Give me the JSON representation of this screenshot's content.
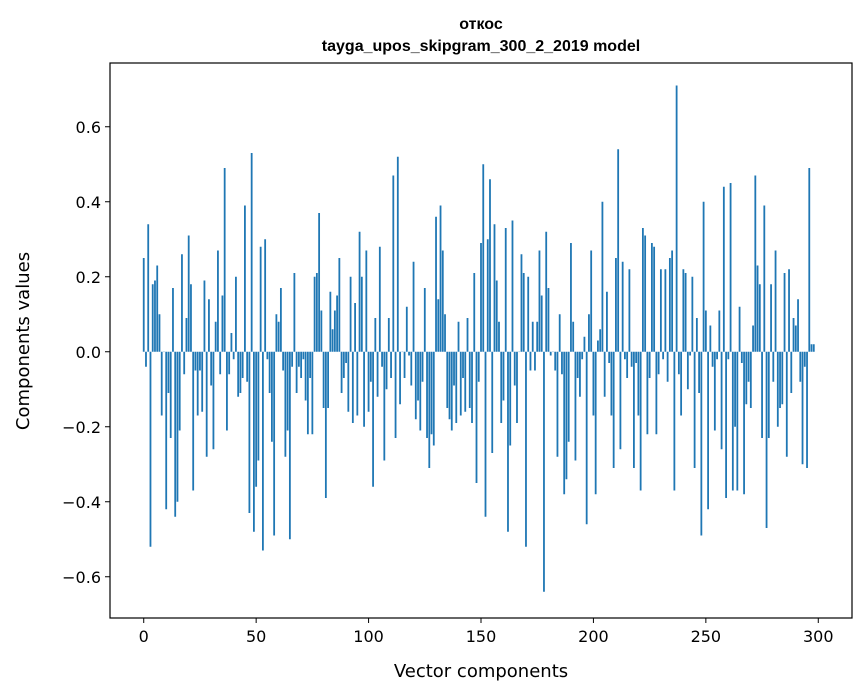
{
  "chart_data": {
    "type": "bar",
    "title": "откос",
    "subtitle": "tayga_upos_skipgram_300_2_2019 model",
    "xlabel": "Vector components",
    "ylabel": "Components values",
    "xlim": [
      -15,
      315
    ],
    "ylim": [
      -0.71,
      0.77
    ],
    "xticks": [
      0,
      50,
      100,
      150,
      200,
      250,
      300
    ],
    "yticks": [
      -0.6,
      -0.4,
      -0.2,
      0.0,
      0.2,
      0.4,
      0.6
    ],
    "ytick_labels": [
      "−0.6",
      "−0.4",
      "−0.2",
      "0.0",
      "0.2",
      "0.4",
      "0.6"
    ],
    "bar_color": "#1f77b4",
    "values": [
      0.25,
      -0.04,
      0.34,
      -0.52,
      0.18,
      0.19,
      0.23,
      0.1,
      -0.17,
      0.0,
      -0.42,
      -0.11,
      -0.23,
      0.17,
      -0.44,
      -0.4,
      -0.21,
      0.26,
      -0.06,
      0.09,
      0.31,
      0.18,
      -0.37,
      -0.05,
      -0.17,
      -0.05,
      -0.16,
      0.19,
      -0.28,
      0.14,
      -0.09,
      -0.26,
      0.08,
      0.27,
      -0.06,
      0.15,
      0.49,
      -0.21,
      -0.06,
      0.05,
      -0.02,
      0.2,
      -0.12,
      -0.11,
      -0.07,
      0.39,
      -0.08,
      -0.43,
      0.53,
      -0.48,
      -0.36,
      -0.29,
      0.28,
      -0.53,
      0.3,
      -0.02,
      -0.11,
      -0.24,
      -0.49,
      0.1,
      0.08,
      0.17,
      -0.05,
      -0.28,
      -0.21,
      -0.5,
      -0.04,
      0.21,
      -0.11,
      -0.04,
      -0.07,
      -0.02,
      -0.13,
      -0.22,
      -0.07,
      -0.22,
      0.2,
      0.21,
      0.37,
      0.11,
      -0.15,
      -0.39,
      -0.15,
      0.16,
      0.06,
      0.11,
      0.15,
      0.25,
      -0.11,
      -0.07,
      -0.03,
      -0.16,
      0.2,
      -0.19,
      0.13,
      -0.17,
      0.32,
      0.2,
      -0.2,
      0.27,
      -0.16,
      -0.08,
      -0.36,
      0.09,
      -0.12,
      0.28,
      -0.04,
      -0.29,
      -0.1,
      0.09,
      -0.07,
      0.47,
      -0.23,
      0.52,
      -0.14,
      0.0,
      -0.07,
      0.12,
      -0.01,
      -0.09,
      0.24,
      -0.18,
      -0.13,
      -0.21,
      -0.08,
      0.17,
      -0.23,
      -0.31,
      -0.22,
      -0.25,
      0.36,
      0.14,
      0.39,
      0.27,
      0.1,
      -0.15,
      -0.18,
      -0.21,
      -0.09,
      -0.19,
      0.08,
      -0.17,
      -0.07,
      -0.16,
      0.09,
      -0.15,
      -0.19,
      0.21,
      -0.35,
      -0.08,
      0.29,
      0.5,
      -0.44,
      0.3,
      0.46,
      -0.27,
      0.34,
      0.19,
      0.08,
      -0.19,
      -0.13,
      0.33,
      -0.48,
      -0.25,
      0.35,
      -0.09,
      -0.19,
      0.0,
      0.26,
      0.21,
      -0.52,
      0.2,
      -0.05,
      0.08,
      -0.05,
      0.08,
      0.27,
      0.15,
      -0.64,
      0.32,
      0.17,
      -0.01,
      0.0,
      -0.05,
      -0.28,
      0.1,
      -0.06,
      -0.38,
      -0.34,
      -0.24,
      0.29,
      0.08,
      -0.29,
      -0.07,
      -0.12,
      -0.02,
      0.04,
      -0.46,
      0.1,
      0.27,
      -0.17,
      -0.38,
      0.03,
      0.06,
      0.4,
      -0.12,
      0.16,
      -0.03,
      -0.17,
      -0.31,
      0.25,
      0.54,
      -0.26,
      0.24,
      -0.02,
      -0.07,
      0.22,
      -0.04,
      -0.31,
      -0.03,
      -0.17,
      -0.37,
      0.33,
      0.31,
      -0.22,
      -0.07,
      0.29,
      0.28,
      -0.22,
      -0.06,
      0.22,
      -0.02,
      0.22,
      -0.08,
      0.25,
      0.27,
      -0.37,
      0.71,
      -0.06,
      -0.17,
      0.22,
      0.21,
      -0.1,
      -0.01,
      0.2,
      -0.31,
      0.09,
      -0.11,
      -0.49,
      0.4,
      0.11,
      -0.42,
      0.07,
      -0.04,
      -0.21,
      -0.02,
      0.11,
      -0.26,
      0.44,
      -0.39,
      -0.02,
      0.45,
      -0.37,
      -0.2,
      -0.37,
      0.12,
      -0.03,
      -0.38,
      -0.14,
      -0.08,
      -0.15,
      0.07,
      0.47,
      0.23,
      0.18,
      -0.23,
      0.39,
      -0.47,
      -0.23,
      0.18,
      -0.08,
      0.27,
      -0.2,
      -0.15,
      -0.14,
      0.21,
      -0.28,
      0.22,
      -0.11,
      0.09,
      0.07,
      0.14,
      -0.08,
      -0.3,
      -0.04,
      -0.31,
      0.49,
      0.02,
      0.02
    ]
  }
}
